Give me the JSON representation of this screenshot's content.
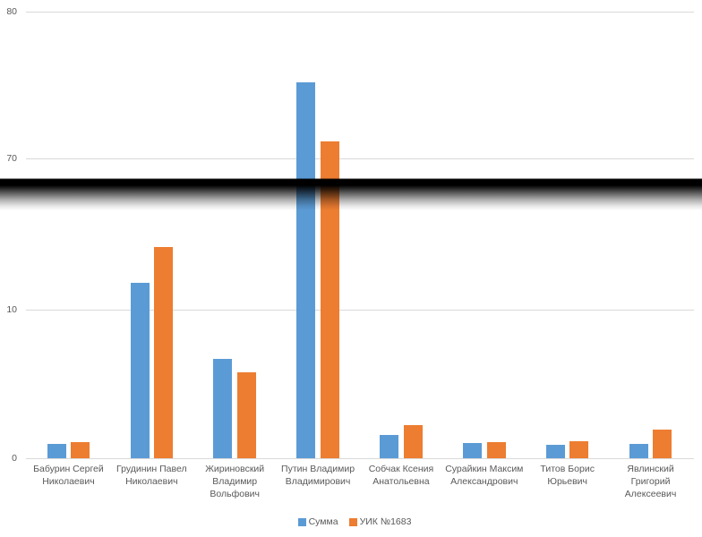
{
  "chart_data": {
    "type": "bar",
    "title": "",
    "categories": [
      "Бабурин Сергей Николаевич",
      "Грудинин Павел Николаевич",
      "Жириновский Владимир Вольфович",
      "Путин Владимир Владимирович",
      "Собчак Ксения Анатольевна",
      "Сурайкин Максим Александрович",
      "Титов Борис Юрьевич",
      "Явлинский Григорий Алексеевич"
    ],
    "category_label_lines": [
      [
        "Бабурин Сергей",
        "Николаевич"
      ],
      [
        "Грудинин Павел",
        "Николаевич"
      ],
      [
        "Жириновский",
        "Владимир",
        "Вольфович"
      ],
      [
        "Путин Владимир",
        "Владимирович"
      ],
      [
        "Собчак Ксения",
        "Анатольевна"
      ],
      [
        "Сурайкин Максим",
        "Александрович"
      ],
      [
        "Титов Борис",
        "Юрьевич"
      ],
      [
        "Явлинский",
        "Григорий",
        "Алексеевич"
      ]
    ],
    "series": [
      {
        "name": "Сумма",
        "color": "#5b9bd5",
        "values": [
          0.95,
          11.8,
          6.7,
          75.2,
          1.55,
          1.0,
          0.9,
          0.95
        ]
      },
      {
        "name": "УИК №1683",
        "color": "#ed7d31",
        "values": [
          1.1,
          14.2,
          5.8,
          71.2,
          2.2,
          1.1,
          1.15,
          1.9
        ]
      }
    ],
    "xlabel": "",
    "ylabel": "",
    "y_axis": {
      "ticks": [
        0,
        10,
        70,
        80
      ],
      "tick_labels": [
        "0",
        "10",
        "70",
        "80"
      ],
      "broken": true,
      "break_between": [
        10,
        70
      ]
    },
    "ylim": [
      0,
      80
    ],
    "grid": true,
    "legend": {
      "position": "bottom"
    },
    "censor_band": {
      "present": true,
      "color": "#000000",
      "covers": "axis break region"
    },
    "colors": {
      "gridline": "#d9d9d9",
      "axis_line": "#d9d9d9",
      "axis_text": "#595959",
      "background": "#ffffff"
    }
  }
}
